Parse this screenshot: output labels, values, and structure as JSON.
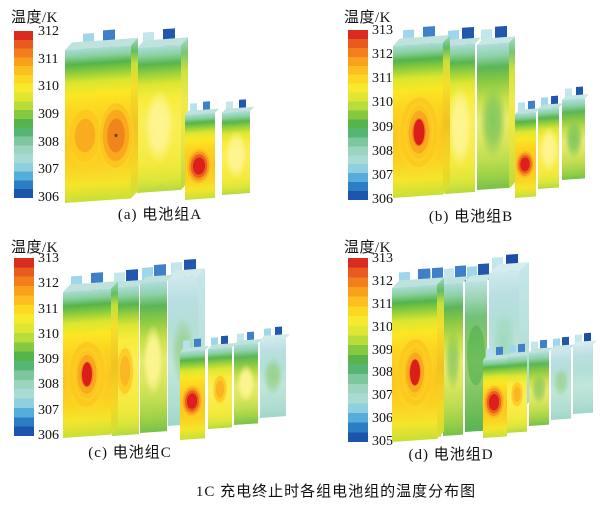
{
  "chart_data": {
    "type": "heatmap",
    "title": "1C 充电终止时各组电池组的温度分布图",
    "colorbar_label": "温度/K",
    "colorbar_unit": "K",
    "legend_position": "left-of-each-panel",
    "grid": false,
    "panels": [
      {
        "key": "a",
        "caption": "(a) 电池组A",
        "ticks_K": [
          312,
          311,
          310,
          309,
          308,
          307,
          306
        ],
        "scale_max_K": 312,
        "scale_min_K": 306,
        "prismatic_cells": 2,
        "pouch_cells": 2,
        "hotspot_note": "front prismatic cell center orange ~311 K; first pouch cell red core ~312 K; cell tops teal ~306-307 K"
      },
      {
        "key": "b",
        "caption": "(b) 电池组B",
        "ticks_K": [
          313,
          312,
          311,
          310,
          309,
          308,
          307,
          306
        ],
        "scale_max_K": 313,
        "scale_min_K": 306,
        "prismatic_cells": 3,
        "pouch_cells": 3,
        "hotspot_note": "front prismatic cell red core ~313 K; first pouch cell red spot ~313 K; rear cells cooler green"
      },
      {
        "key": "c",
        "caption": "(c) 电池组C",
        "ticks_K": [
          313,
          312,
          311,
          310,
          309,
          308,
          307,
          306
        ],
        "scale_max_K": 313,
        "scale_min_K": 306,
        "prismatic_cells": 4,
        "pouch_cells": 4,
        "hotspot_note": "front prismatic cell red core ~313 K; first pouch cell red spot; rearmost cells pale blue-green"
      },
      {
        "key": "d",
        "caption": "(d) 电池组D",
        "ticks_K": [
          313,
          312,
          311,
          310,
          309,
          308,
          307,
          306,
          305
        ],
        "scale_max_K": 313,
        "scale_min_K": 305,
        "prismatic_cells": 5,
        "pouch_cells": 5,
        "hotspot_note": "front prismatic cell red core ~313 K; first pouch cell red spot; rearmost cells pale blue ~305-306 K"
      }
    ]
  },
  "colorbar_colors": [
    "#d92b20",
    "#e85a1e",
    "#f37f1c",
    "#f9a11d",
    "#fcbf1f",
    "#fdd823",
    "#f7ea2d",
    "#dfe733",
    "#b8dc3a",
    "#86c93f",
    "#57b44d",
    "#54b672",
    "#7ec79e",
    "#9cd4bf",
    "#aadad4",
    "#8ed0df",
    "#55aed9",
    "#2b7ec4",
    "#1c55ab"
  ],
  "status_colors": {
    "hot_red": "#dc1e1b",
    "warm_orange": "#f0851c",
    "mid_yellow": "#fbe724",
    "cool_green": "#57b44d",
    "cold_blue": "#1c55ab"
  }
}
